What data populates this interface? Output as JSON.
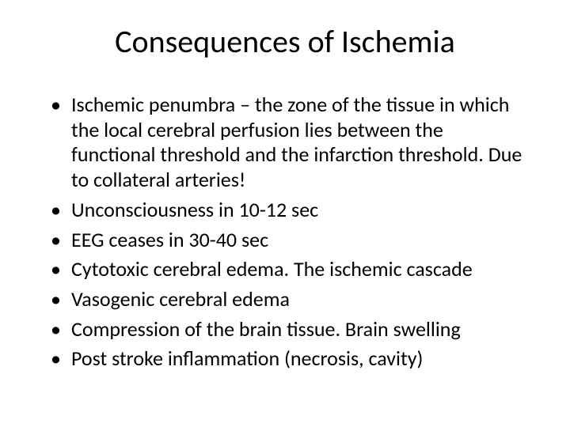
{
  "slide": {
    "title": "Consequences of Ischemia",
    "bullets": [
      "Ischemic penumbra – the zone of the tissue in which the local cerebral perfusion lies between the functional threshold and the infarction threshold. Due to collateral arteries!",
      "Unconsciousness in 10-12 sec",
      "EEG ceases in 30-40 sec",
      "Cytotoxic cerebral edema. The ischemic cascade",
      "Vasogenic cerebral edema",
      "Compression of the brain tissue. Brain swelling",
      "Post stroke inflammation (necrosis, cavity)"
    ]
  },
  "style": {
    "background_color": "#ffffff",
    "text_color": "#000000",
    "title_fontsize": 40,
    "body_fontsize": 26,
    "font_family": "Calibri"
  }
}
